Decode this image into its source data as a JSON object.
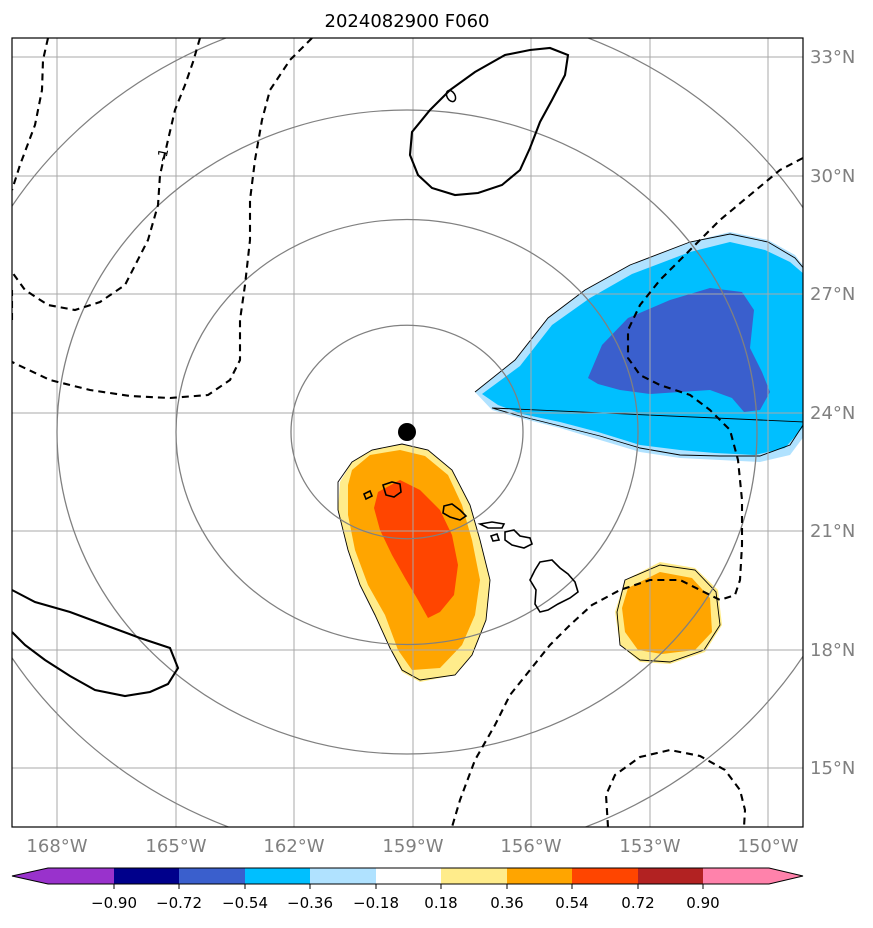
{
  "title": "2024082900 F060",
  "map": {
    "lon_labels": [
      "168°W",
      "165°W",
      "162°W",
      "159°W",
      "156°W",
      "153°W",
      "150°W"
    ],
    "lat_labels": [
      "33°N",
      "30°N",
      "27°N",
      "24°N",
      "21°N",
      "18°N",
      "15°N"
    ],
    "contour_label": "-1",
    "colors": {
      "grid": "#a8a8a8",
      "range_rings": "#808080",
      "contour": "#000000",
      "tick_label": "#808080"
    },
    "center_marker": "storm-center-dot"
  },
  "colorbar": {
    "tick_labels": [
      "−0.90",
      "−0.72",
      "−0.54",
      "−0.36",
      "−0.18",
      "0.18",
      "0.36",
      "0.54",
      "0.72",
      "0.90"
    ],
    "colors": [
      "#9932cc",
      "#00008b",
      "#3a5fcd",
      "#00bfff",
      "#b0e2ff",
      "#ffffff",
      "#ffec8b",
      "#ffa500",
      "#ff4500",
      "#b22222",
      "#ff82ab"
    ]
  }
}
